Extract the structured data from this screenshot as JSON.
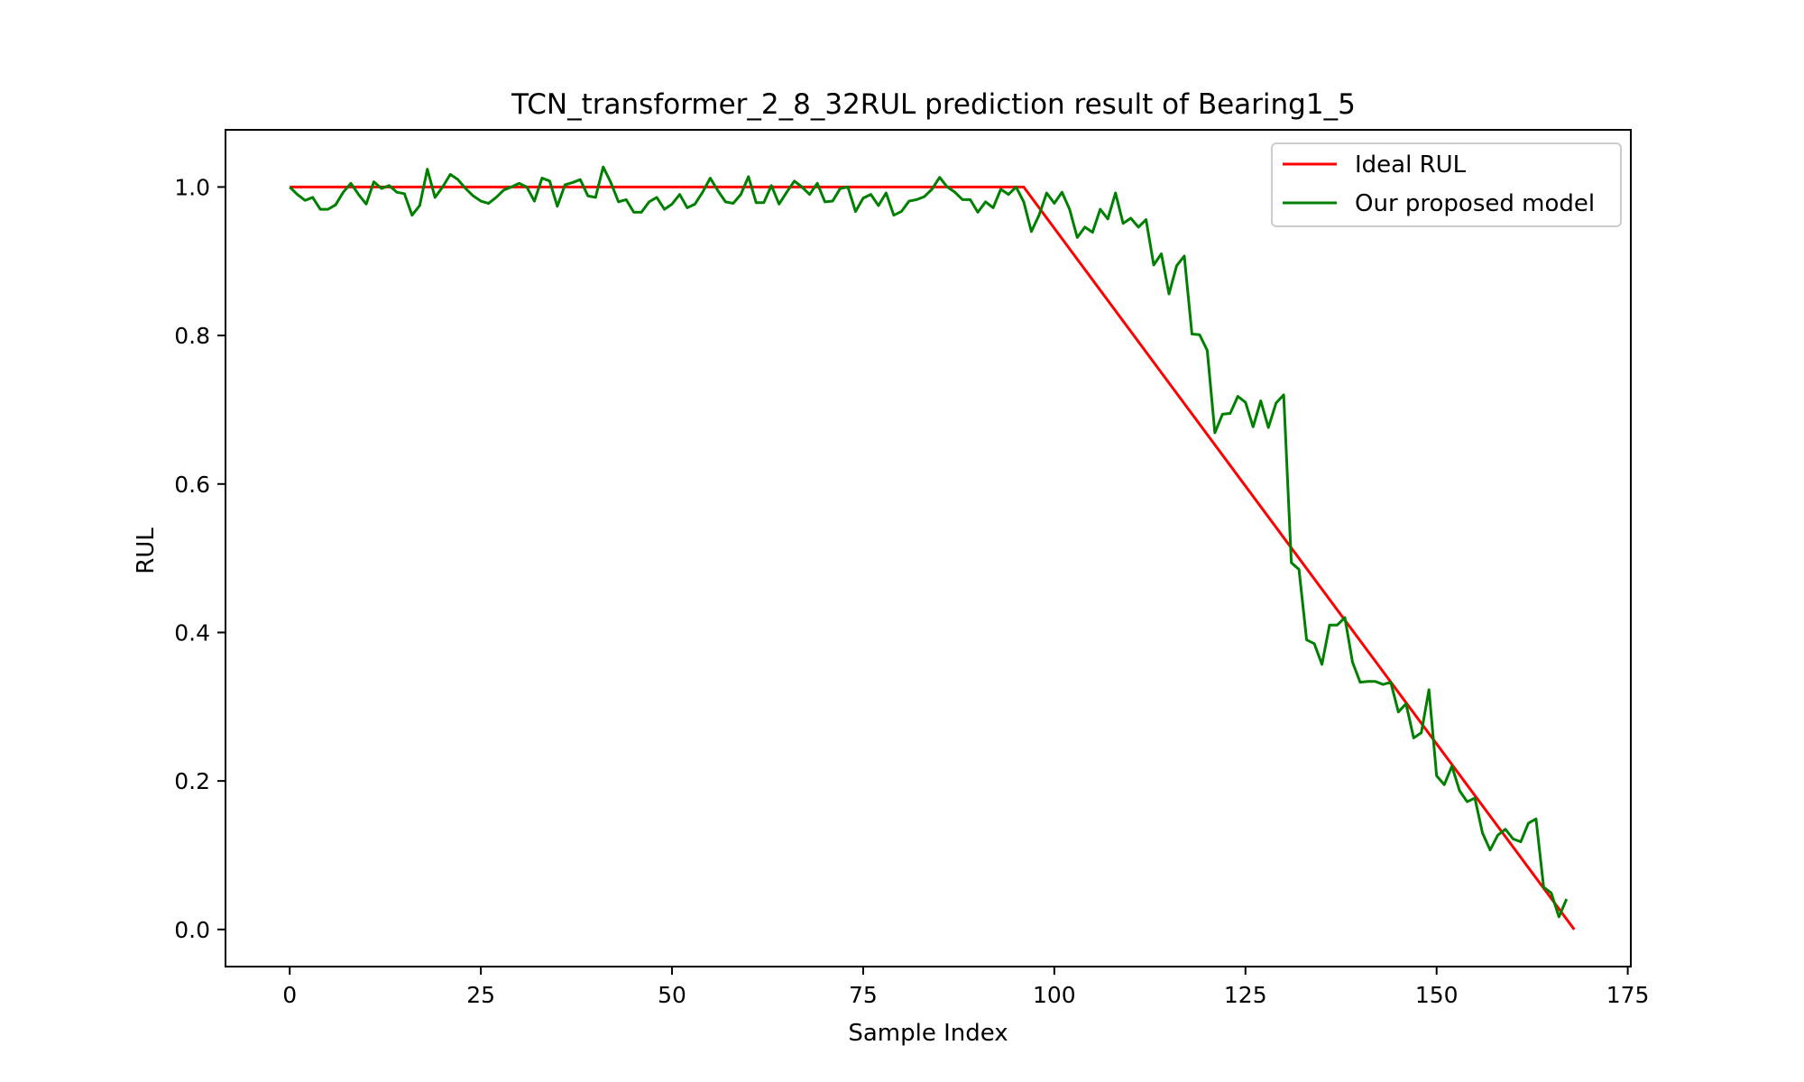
{
  "chart_data": {
    "type": "line",
    "title": "TCN_transformer_2_8_32RUL prediction result of Bearing1_5",
    "xlabel": "Sample Index",
    "ylabel": "RUL",
    "xlim": [
      -8.4,
      175.4
    ],
    "ylim": [
      -0.05,
      1.077
    ],
    "xticks": [
      0,
      25,
      50,
      75,
      100,
      125,
      150,
      175
    ],
    "yticks": [
      0.0,
      0.2,
      0.4,
      0.6,
      0.8,
      1.0
    ],
    "xtick_labels": [
      "0",
      "25",
      "50",
      "75",
      "100",
      "125",
      "150",
      "175"
    ],
    "ytick_labels": [
      "0.0",
      "0.2",
      "0.4",
      "0.6",
      "0.8",
      "1.0"
    ],
    "grid": false,
    "legend_position": "top-right",
    "series": [
      {
        "name": "Ideal RUL",
        "color": "#ff0000",
        "x": [
          0,
          96,
          168
        ],
        "y": [
          1.0,
          1.0,
          0.0
        ]
      },
      {
        "name": "Our proposed model",
        "color": "#008000",
        "x_start": 0,
        "y": [
          1.0,
          0.99,
          0.982,
          0.986,
          0.97,
          0.97,
          0.976,
          0.993,
          1.005,
          0.99,
          0.977,
          1.007,
          0.998,
          1.002,
          0.993,
          0.991,
          0.962,
          0.975,
          1.024,
          0.986,
          1.0,
          1.017,
          1.01,
          0.998,
          0.988,
          0.981,
          0.978,
          0.986,
          0.996,
          1.0,
          1.005,
          1.0,
          0.981,
          1.012,
          1.008,
          0.974,
          1.003,
          1.006,
          1.01,
          0.988,
          0.986,
          1.027,
          1.006,
          0.98,
          0.983,
          0.966,
          0.966,
          0.98,
          0.986,
          0.97,
          0.977,
          0.99,
          0.972,
          0.977,
          0.993,
          1.012,
          0.995,
          0.98,
          0.978,
          0.99,
          1.014,
          0.979,
          0.979,
          1.002,
          0.977,
          0.993,
          1.008,
          1.0,
          0.99,
          1.005,
          0.98,
          0.981,
          0.998,
          1.0,
          0.967,
          0.985,
          0.99,
          0.975,
          0.992,
          0.962,
          0.967,
          0.981,
          0.983,
          0.987,
          0.997,
          1.013,
          1.0,
          0.993,
          0.983,
          0.983,
          0.966,
          0.98,
          0.972,
          0.997,
          0.99,
          1.0,
          0.98,
          0.94,
          0.962,
          0.992,
          0.978,
          0.993,
          0.97,
          0.932,
          0.946,
          0.939,
          0.97,
          0.957,
          0.992,
          0.951,
          0.958,
          0.946,
          0.956,
          0.895,
          0.91,
          0.856,
          0.894,
          0.907,
          0.802,
          0.801,
          0.78,
          0.669,
          0.694,
          0.695,
          0.718,
          0.71,
          0.677,
          0.712,
          0.676,
          0.709,
          0.72,
          0.494,
          0.485,
          0.39,
          0.385,
          0.357,
          0.41,
          0.41,
          0.42,
          0.36,
          0.333,
          0.334,
          0.334,
          0.33,
          0.333,
          0.293,
          0.304,
          0.258,
          0.265,
          0.323,
          0.207,
          0.195,
          0.22,
          0.187,
          0.172,
          0.177,
          0.13,
          0.107,
          0.127,
          0.135,
          0.122,
          0.118,
          0.143,
          0.149,
          0.057,
          0.049,
          0.017,
          0.041
        ]
      }
    ]
  }
}
